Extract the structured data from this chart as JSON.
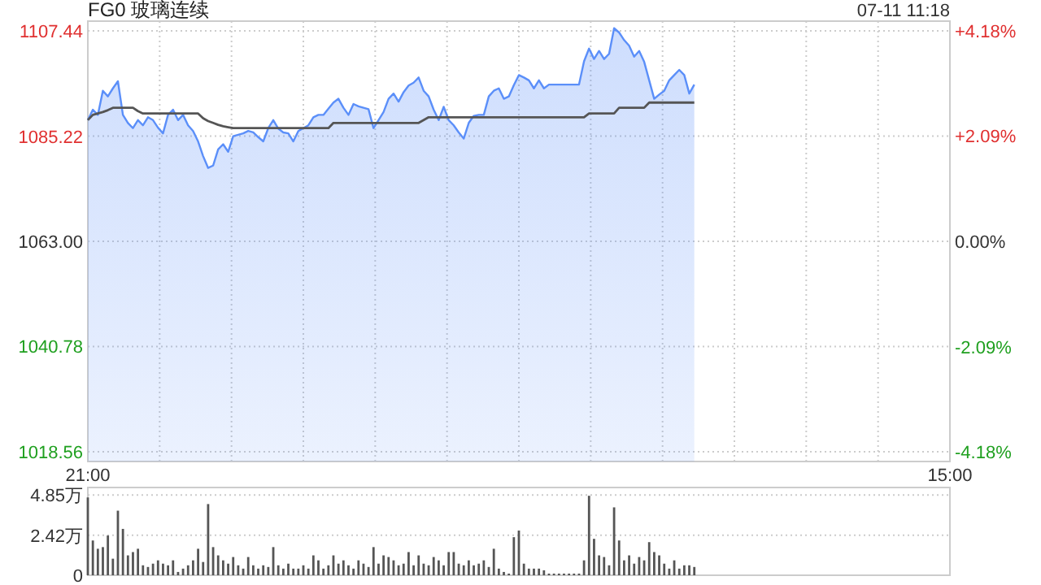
{
  "chart_data": [
    {
      "type": "area",
      "title": "FG0 玻璃连续",
      "annotations": [
        "07-11 11:18"
      ],
      "categories": [
        "21:00",
        null,
        null,
        null,
        null,
        null,
        null,
        null,
        null,
        null,
        null,
        null,
        null,
        null,
        null,
        null,
        null,
        null,
        null,
        null,
        null,
        null,
        null,
        null,
        null,
        null,
        null,
        null,
        null,
        null,
        null,
        null,
        null,
        null,
        null,
        null,
        null,
        null,
        null,
        null,
        null,
        null,
        null,
        null,
        null,
        null,
        null,
        null,
        null,
        null,
        null,
        null,
        null,
        null,
        null,
        null,
        null,
        null,
        null,
        null,
        null,
        null,
        null,
        null,
        null,
        null,
        null,
        null,
        null,
        null,
        null,
        null,
        null,
        null,
        null,
        null,
        null,
        null,
        null,
        null,
        null,
        null,
        null,
        null,
        null,
        null,
        null,
        null,
        null,
        null,
        null,
        null,
        null,
        null,
        null,
        null,
        null,
        null,
        null,
        null,
        null,
        null,
        null,
        null,
        null,
        null,
        null,
        null,
        null,
        null,
        null,
        null,
        null,
        null,
        null,
        null,
        null,
        null,
        null,
        null,
        null,
        null,
        null,
        null,
        null,
        null,
        null,
        null,
        null,
        null,
        null,
        null,
        null,
        null,
        null,
        null,
        null,
        null,
        null,
        null,
        null,
        null,
        null,
        null,
        null,
        null,
        null,
        null,
        null,
        null,
        null,
        null,
        null,
        null,
        null,
        null,
        null,
        null,
        null,
        null,
        null,
        null,
        null,
        null,
        null,
        null,
        null,
        null,
        null,
        null,
        null,
        null,
        "15:00"
      ],
      "ylim": [
        1016.5,
        1109.5
      ],
      "yticks": [
        {
          "value": 1018.56,
          "label": "1018.56"
        },
        {
          "value": 1040.78,
          "label": "1040.78"
        },
        {
          "value": 1063,
          "label": "1063.00"
        },
        {
          "value": 1085.22,
          "label": "1085.22"
        },
        {
          "value": 1107.44,
          "label": "1107.44"
        }
      ],
      "y2lim": [
        -4.37,
        4.37
      ],
      "y2ticks": [
        {
          "value": -4.18,
          "label": "-4.18%"
        },
        {
          "value": -2.09,
          "label": "-2.09%"
        },
        {
          "value": 0,
          "label": "0.00%"
        },
        {
          "value": 2.09,
          "label": "+2.09%"
        },
        {
          "value": 4.18,
          "label": "+4.18%"
        }
      ],
      "grid": true,
      "series": [
        {
          "color": "#5b8ff9",
          "values": [
            1088.6,
            1090.8,
            1089.7,
            1094.8,
            1093.6,
            1095.3,
            1096.8,
            1089.7,
            1088.0,
            1086.9,
            1088.6,
            1087.5,
            1089.2,
            1088.6,
            1087.0,
            1085.8,
            1089.7,
            1090.8,
            1088.6,
            1089.7,
            1087.5,
            1086.3,
            1084.1,
            1081.0,
            1078.5,
            1079.0,
            1082.4,
            1083.5,
            1081.9,
            1085.2,
            1085.5,
            1085.8,
            1086.3,
            1086.0,
            1085.0,
            1084.1,
            1086.9,
            1088.6,
            1086.8,
            1086.0,
            1085.8,
            1084.1,
            1086.3,
            1086.9,
            1087.5,
            1089.2,
            1089.7,
            1089.7,
            1091.0,
            1092.3,
            1093.1,
            1091.2,
            1089.7,
            1092.0,
            1091.5,
            1091.2,
            1090.9,
            1086.9,
            1088.6,
            1090.3,
            1093.1,
            1094.2,
            1092.5,
            1094.5,
            1095.9,
            1096.5,
            1097.6,
            1094.8,
            1093.6,
            1090.8,
            1088.6,
            1091.4,
            1088.6,
            1087.5,
            1086.0,
            1084.7,
            1088.0,
            1089.5,
            1089.7,
            1089.7,
            1093.6,
            1094.8,
            1095.3,
            1093.1,
            1093.6,
            1096.0,
            1098.1,
            1097.6,
            1097.0,
            1095.3,
            1097.0,
            1095.3,
            1096.1,
            1096.1,
            1096.1,
            1096.1,
            1096.1,
            1096.1,
            1096.1,
            1101.0,
            1103.7,
            1101.5,
            1103.2,
            1101.5,
            1102.6,
            1108.0,
            1107.1,
            1105.5,
            1104.3,
            1102.0,
            1103.2,
            1100.9,
            1097.0,
            1093.1,
            1094.0,
            1094.8,
            1097.0,
            1098.1,
            1099.2,
            1098.1,
            1094.2,
            1096.1,
            null,
            null,
            null,
            null,
            null,
            null,
            null,
            null,
            null,
            null,
            null,
            null,
            null,
            null,
            null,
            null,
            null,
            null,
            null,
            null,
            null,
            null,
            null,
            null,
            null,
            null,
            null,
            null,
            null,
            null,
            null,
            null,
            null,
            null,
            null,
            null,
            null,
            null,
            null,
            null,
            null,
            null,
            null,
            null,
            null,
            null,
            null,
            null,
            null,
            null,
            null
          ]
        },
        {
          "type": "line",
          "color": "#555555",
          "values": [
            1088.6,
            1089.7,
            1090.0,
            1090.3,
            1090.7,
            1091.2,
            1091.2,
            1091.2,
            1091.2,
            1091.2,
            1090.5,
            1090.0,
            1090.0,
            1090.0,
            1090.0,
            1090.0,
            1090.0,
            1090.0,
            1090.0,
            1090.0,
            1090.0,
            1090.0,
            1090.0,
            1089.0,
            1088.4,
            1088.0,
            1087.6,
            1087.3,
            1087.1,
            1086.9,
            1086.9,
            1086.9,
            1086.9,
            1086.9,
            1086.9,
            1086.9,
            1086.9,
            1086.9,
            1086.9,
            1086.9,
            1086.9,
            1086.9,
            1086.9,
            1086.9,
            1086.9,
            1086.9,
            1086.9,
            1086.9,
            1086.9,
            1088.0,
            1088.0,
            1088.0,
            1088.0,
            1088.0,
            1088.0,
            1088.0,
            1088.0,
            1088.0,
            1088.0,
            1088.0,
            1088.0,
            1088.0,
            1088.0,
            1088.0,
            1088.0,
            1088.0,
            1088.0,
            1088.6,
            1089.2,
            1089.2,
            1089.2,
            1089.2,
            1089.2,
            1089.2,
            1089.2,
            1089.2,
            1089.2,
            1089.2,
            1089.2,
            1089.2,
            1089.2,
            1089.2,
            1089.2,
            1089.2,
            1089.2,
            1089.2,
            1089.2,
            1089.2,
            1089.2,
            1089.2,
            1089.2,
            1089.2,
            1089.2,
            1089.2,
            1089.2,
            1089.2,
            1089.2,
            1089.2,
            1089.2,
            1089.2,
            1090.0,
            1090.0,
            1090.0,
            1090.0,
            1090.0,
            1090.0,
            1091.2,
            1091.2,
            1091.2,
            1091.2,
            1091.2,
            1091.2,
            1092.3,
            1092.3,
            1092.3,
            1092.3,
            1092.3,
            1092.3,
            1092.3,
            1092.3,
            1092.3,
            1092.3,
            null,
            null,
            null,
            null,
            null,
            null,
            null,
            null,
            null,
            null,
            null,
            null,
            null,
            null,
            null,
            null,
            null,
            null,
            null,
            null,
            null,
            null,
            null,
            null,
            null,
            null,
            null,
            null,
            null,
            null,
            null,
            null,
            null,
            null,
            null,
            null,
            null,
            null,
            null,
            null,
            null,
            null,
            null,
            null,
            null,
            null,
            null,
            null,
            null,
            null,
            null
          ]
        }
      ]
    },
    {
      "type": "bar",
      "categories": [
        null,
        null,
        null,
        null,
        null,
        null,
        null,
        null,
        null,
        null,
        null,
        null,
        null,
        null,
        null,
        null,
        null,
        null,
        null,
        null,
        null,
        null,
        null,
        null,
        null,
        null,
        null,
        null,
        null,
        null,
        null,
        null,
        null,
        null,
        null,
        null,
        null,
        null,
        null,
        null,
        null,
        null,
        null,
        null,
        null,
        null,
        null,
        null,
        null,
        null,
        null,
        null,
        null,
        null,
        null,
        null,
        null,
        null,
        null,
        null,
        null,
        null,
        null,
        null,
        null,
        null,
        null,
        null,
        null,
        null,
        null,
        null,
        null,
        null,
        null,
        null,
        null,
        null,
        null,
        null,
        null,
        null,
        null,
        null,
        null,
        null,
        null,
        null,
        null,
        null,
        null,
        null,
        null,
        null,
        null,
        null,
        null,
        null,
        null,
        null,
        null,
        null,
        null,
        null,
        null,
        null,
        null,
        null,
        null,
        null,
        null,
        null,
        null,
        null,
        null,
        null,
        null,
        null,
        null,
        null,
        null,
        null,
        null,
        null,
        null,
        null,
        null,
        null,
        null,
        null,
        null,
        null,
        null,
        null,
        null,
        null,
        null,
        null,
        null,
        null,
        null,
        null,
        null,
        null,
        null,
        null,
        null,
        null,
        null,
        null,
        null,
        null,
        null,
        null,
        null,
        null,
        null,
        null,
        null,
        null,
        null,
        null,
        null,
        null,
        null,
        null,
        null,
        null,
        null,
        null,
        null,
        null,
        null
      ],
      "tick_labels": "y",
      "ylim": [
        0,
        5.3
      ],
      "yticks": [
        {
          "value": 0,
          "label": "0"
        },
        {
          "value": 2.42,
          "label": "2.42万"
        },
        {
          "value": 4.85,
          "label": "4.85万"
        }
      ],
      "grid": "y",
      "series": [
        {
          "color": "#555555",
          "values": [
            4.7,
            2.1,
            1.6,
            1.7,
            2.4,
            1.0,
            3.9,
            2.8,
            1.2,
            1.4,
            1.6,
            0.6,
            0.5,
            0.7,
            0.9,
            0.7,
            0.6,
            0.9,
            0.2,
            0.4,
            0.6,
            0.9,
            1.6,
            0.8,
            4.3,
            1.7,
            1.2,
            0.9,
            0.7,
            1.1,
            0.6,
            0.4,
            1.1,
            0.6,
            0.4,
            0.6,
            0.5,
            1.7,
            0.6,
            0.4,
            0.7,
            0.4,
            0.4,
            0.6,
            0.4,
            1.2,
            0.9,
            0.4,
            0.6,
            1.2,
            0.7,
            0.9,
            0.6,
            0.4,
            0.9,
            0.7,
            0.5,
            1.7,
            0.7,
            1.2,
            1.1,
            0.9,
            0.6,
            0.7,
            1.4,
            0.6,
            1.2,
            0.7,
            0.6,
            1.1,
            0.9,
            0.6,
            1.4,
            1.4,
            0.7,
            0.6,
            0.9,
            0.6,
            0.7,
            0.9,
            0.5,
            1.6,
            0.4,
            0.2,
            0.1,
            2.3,
            2.7,
            0.7,
            0.4,
            0.4,
            0.4,
            0.3,
            0.1,
            0.1,
            0.1,
            0.1,
            0.1,
            0.1,
            0.1,
            0.9,
            4.8,
            2.2,
            1.2,
            1.1,
            0.6,
            4.1,
            2.1,
            0.9,
            1.2,
            0.7,
            1.1,
            0.9,
            2.0,
            1.4,
            1.2,
            0.7,
            0.4,
            0.9,
            0.4,
            0.6,
            0.6,
            0.5,
            null,
            null,
            null,
            null,
            null,
            null,
            null,
            null,
            null,
            null,
            null,
            null,
            null,
            null,
            null,
            null,
            null,
            null,
            null,
            null,
            null,
            null,
            null,
            null,
            null,
            null,
            null,
            null,
            null,
            null,
            null,
            null,
            null,
            null,
            null,
            null,
            null,
            null,
            null,
            null,
            null,
            null,
            null,
            null,
            null,
            null,
            null,
            null,
            null,
            null,
            null
          ]
        }
      ]
    }
  ]
}
